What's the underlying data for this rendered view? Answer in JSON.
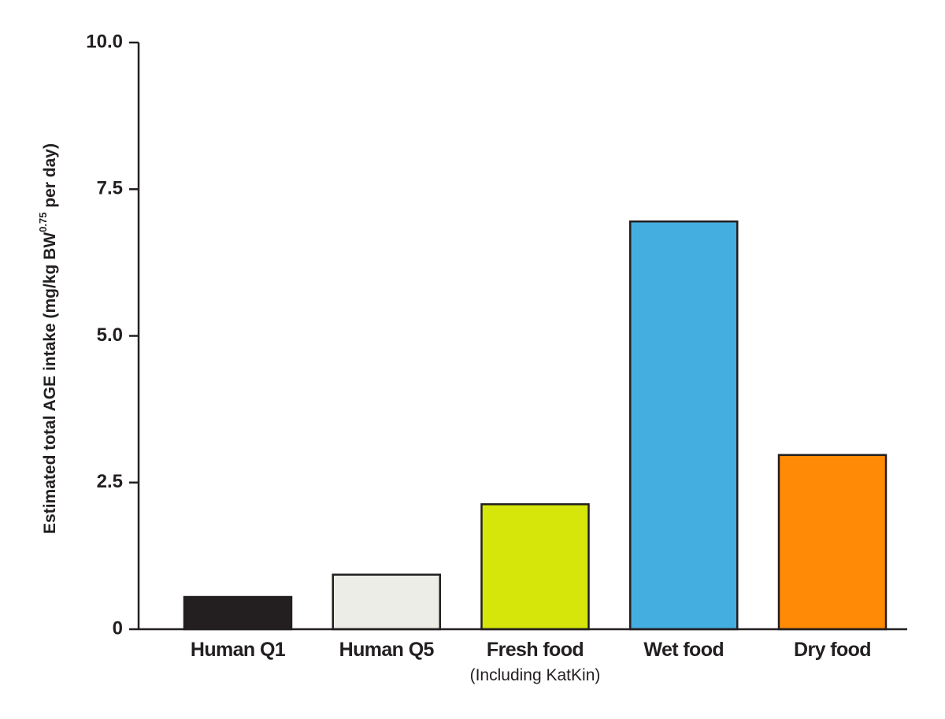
{
  "chart_data": {
    "type": "bar",
    "title": "",
    "ylabel_parts": [
      "Estimated total AGE intake (mg/kg BW",
      "0.75",
      " per day)"
    ],
    "xlabel": "",
    "ylim": [
      0,
      10
    ],
    "yticks": [
      "0",
      "2.5",
      "5.0",
      "7.5",
      "10.0"
    ],
    "ytick_values": [
      0,
      2.5,
      5.0,
      7.5,
      10.0
    ],
    "categories": [
      "Human Q1",
      "Human Q5",
      "Fresh food",
      "Wet food",
      "Dry food"
    ],
    "category_sublabels": [
      "",
      "",
      "(Including KatKin)",
      "",
      ""
    ],
    "values": [
      0.55,
      0.93,
      2.13,
      6.95,
      2.97
    ],
    "colors": [
      "#231f20",
      "#ecede6",
      "#d6e60b",
      "#45aee0",
      "#ff8a05"
    ],
    "grid": false,
    "legend": "none"
  }
}
